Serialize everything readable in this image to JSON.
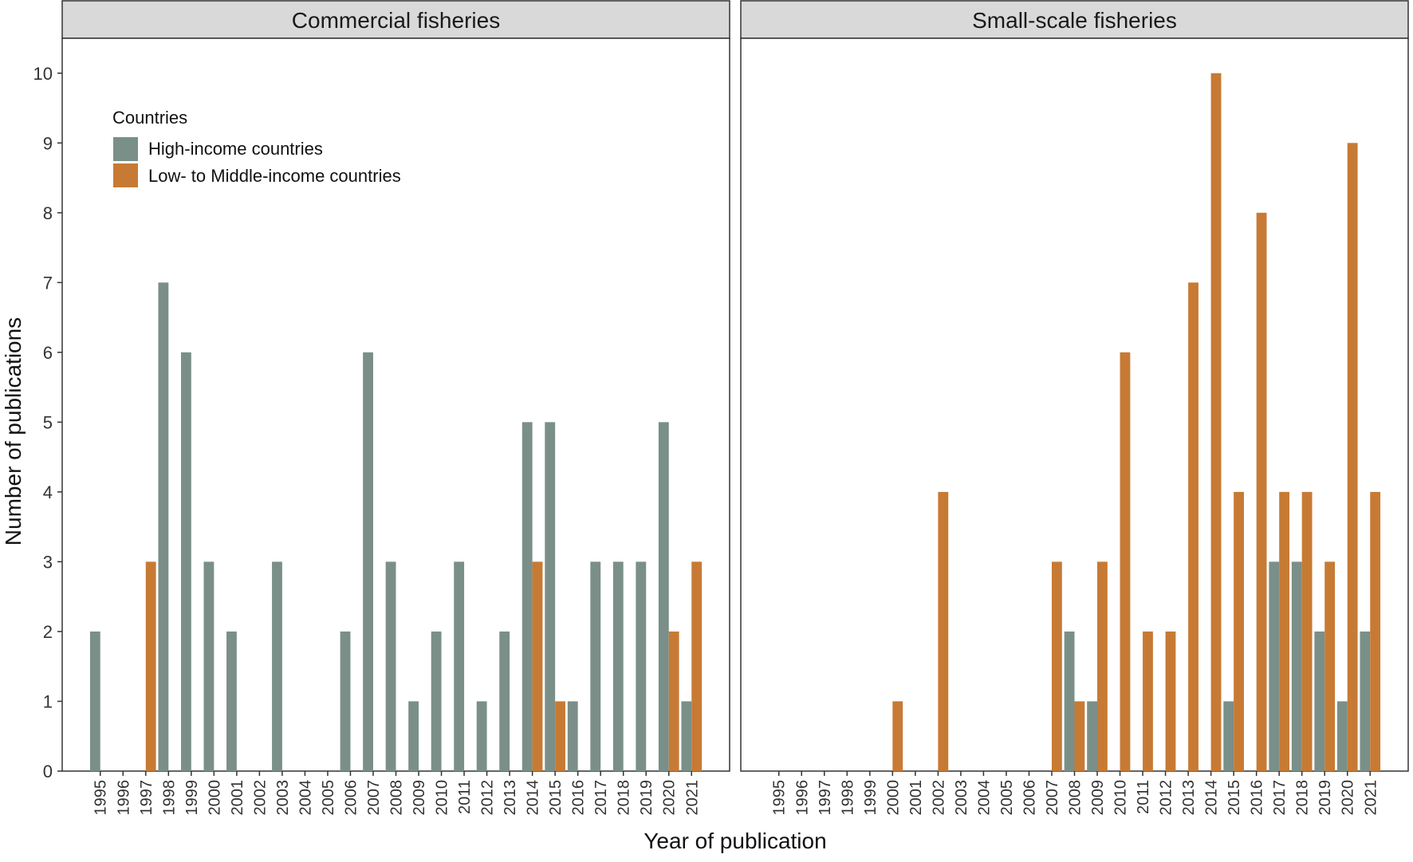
{
  "chart_data": {
    "type": "bar",
    "ylabel": "Number of publications",
    "xlabel": "Year of publication",
    "ylim": [
      0,
      10.5
    ],
    "yticks": [
      0,
      1,
      2,
      3,
      4,
      5,
      6,
      7,
      8,
      9,
      10
    ],
    "grid": false,
    "legend": {
      "title": "Countries",
      "placement": "top-left inside first panel",
      "entries": [
        {
          "label": "High-income countries",
          "color": "#7a8f88"
        },
        {
          "label": "Low- to Middle-income countries",
          "color": "#c77a34"
        }
      ]
    },
    "categories": [
      "1995",
      "1996",
      "1997",
      "1998",
      "1999",
      "2000",
      "2001",
      "2002",
      "2003",
      "2004",
      "2005",
      "2006",
      "2007",
      "2008",
      "2009",
      "2010",
      "2011",
      "2012",
      "2013",
      "2014",
      "2015",
      "2016",
      "2017",
      "2018",
      "2019",
      "2020",
      "2021"
    ],
    "panels": [
      {
        "title": "Commercial fisheries",
        "series": [
          {
            "name": "High-income countries",
            "color": "#7a8f88",
            "values": [
              2,
              0,
              0,
              7,
              6,
              3,
              2,
              0,
              3,
              0,
              0,
              2,
              6,
              3,
              1,
              2,
              3,
              1,
              2,
              5,
              5,
              1,
              3,
              3,
              3,
              5,
              1
            ]
          },
          {
            "name": "Low- to Middle-income countries",
            "color": "#c77a34",
            "values": [
              0,
              0,
              3,
              0,
              0,
              0,
              0,
              0,
              0,
              0,
              0,
              0,
              0,
              0,
              0,
              0,
              0,
              0,
              0,
              3,
              1,
              0,
              0,
              0,
              0,
              2,
              3
            ]
          }
        ]
      },
      {
        "title": "Small-scale fisheries",
        "series": [
          {
            "name": "High-income countries",
            "color": "#7a8f88",
            "values": [
              0,
              0,
              0,
              0,
              0,
              0,
              0,
              0,
              0,
              0,
              0,
              0,
              0,
              2,
              1,
              0,
              0,
              0,
              0,
              0,
              1,
              0,
              3,
              3,
              2,
              1,
              2
            ]
          },
          {
            "name": "Low- to Middle-income countries",
            "color": "#c77a34",
            "values": [
              0,
              0,
              0,
              0,
              0,
              1,
              0,
              4,
              0,
              0,
              0,
              0,
              3,
              1,
              3,
              6,
              2,
              2,
              7,
              10,
              4,
              8,
              4,
              4,
              3,
              9,
              4
            ]
          }
        ]
      }
    ]
  }
}
